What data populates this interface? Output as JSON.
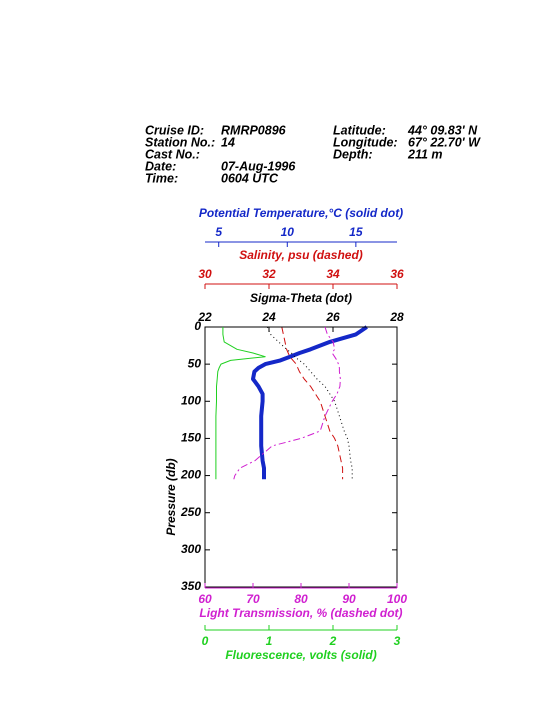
{
  "header": {
    "left": [
      {
        "label": "Cruise ID:",
        "value": "RMRP0896"
      },
      {
        "label": "Station No.:",
        "value": "14"
      },
      {
        "label": "Cast No.:",
        "value": null
      },
      {
        "label": "Date:",
        "value": "07-Aug-1996"
      },
      {
        "label": "Time:",
        "value": "0604 UTC"
      }
    ],
    "right": [
      {
        "label": "Latitude:",
        "value": "44° 09.83' N"
      },
      {
        "label": "Longitude:",
        "value": "67° 22.70' W"
      },
      {
        "label": "Depth:",
        "value": "211 m"
      }
    ]
  },
  "chart_data": {
    "type": "profile",
    "ylabel": "Pressure (db)",
    "y": [
      0,
      10,
      20,
      30,
      35,
      40,
      45,
      50,
      55,
      60,
      70,
      80,
      90,
      100,
      120,
      140,
      150,
      160,
      180,
      190,
      200,
      205
    ],
    "ylim": [
      0,
      350
    ],
    "yticks": [
      0,
      50,
      100,
      150,
      200,
      250,
      300,
      350
    ],
    "series": [
      {
        "name": "Potential Temperature,°C (solid dot)",
        "color": "#1428c8",
        "xlim": [
          4,
          18
        ],
        "xticks": [
          5,
          10,
          15
        ],
        "values": [
          15.8,
          15.0,
          13.1,
          11.7,
          10.9,
          10.2,
          9.5,
          8.4,
          7.9,
          7.6,
          7.5,
          7.9,
          8.2,
          8.2,
          8.1,
          8.1,
          8.1,
          8.1,
          8.2,
          8.3,
          8.3,
          8.3
        ]
      },
      {
        "name": "Salinity, psu  (dashed)",
        "color": "#d01010",
        "xlim": [
          30,
          36
        ],
        "xticks": [
          30,
          32,
          34,
          36
        ],
        "values": [
          32.4,
          32.45,
          32.5,
          32.55,
          32.6,
          32.65,
          32.75,
          32.85,
          32.9,
          32.95,
          33.1,
          33.3,
          33.45,
          33.6,
          33.75,
          33.9,
          34.05,
          34.15,
          34.25,
          34.3,
          34.3,
          34.3
        ]
      },
      {
        "name": "Sigma-Theta (dot)",
        "color": "#000000",
        "xlim": [
          22,
          28
        ],
        "xticks": [
          22,
          24,
          26,
          28
        ],
        "values": [
          23.95,
          24.05,
          24.3,
          24.55,
          24.7,
          24.8,
          24.95,
          25.1,
          25.2,
          25.3,
          25.5,
          25.75,
          25.9,
          26.05,
          26.2,
          26.35,
          26.45,
          26.5,
          26.55,
          26.6,
          26.6,
          26.6
        ]
      },
      {
        "name": "Light Transmission, % (dashed dot)",
        "color": "#d020d0",
        "xlim": [
          60,
          100
        ],
        "xticks": [
          60,
          70,
          80,
          90,
          100
        ],
        "values": [
          85,
          85.5,
          86.7,
          87,
          86.5,
          87,
          87.5,
          87.8,
          88,
          88,
          88.2,
          88.1,
          87.5,
          86.5,
          85,
          84,
          80,
          74,
          70.4,
          67.3,
          66.2,
          66
        ]
      },
      {
        "name": "Fluorescence, volts (solid)",
        "color": "#20d020",
        "xlim": [
          0,
          3
        ],
        "xticks": [
          0,
          1,
          2,
          3
        ],
        "values": [
          0.28,
          0.28,
          0.3,
          0.5,
          0.75,
          0.94,
          0.4,
          0.25,
          0.22,
          0.2,
          0.19,
          0.18,
          0.18,
          0.18,
          0.17,
          0.17,
          0.17,
          0.17,
          0.17,
          0.17,
          0.17,
          0.17
        ]
      }
    ]
  }
}
